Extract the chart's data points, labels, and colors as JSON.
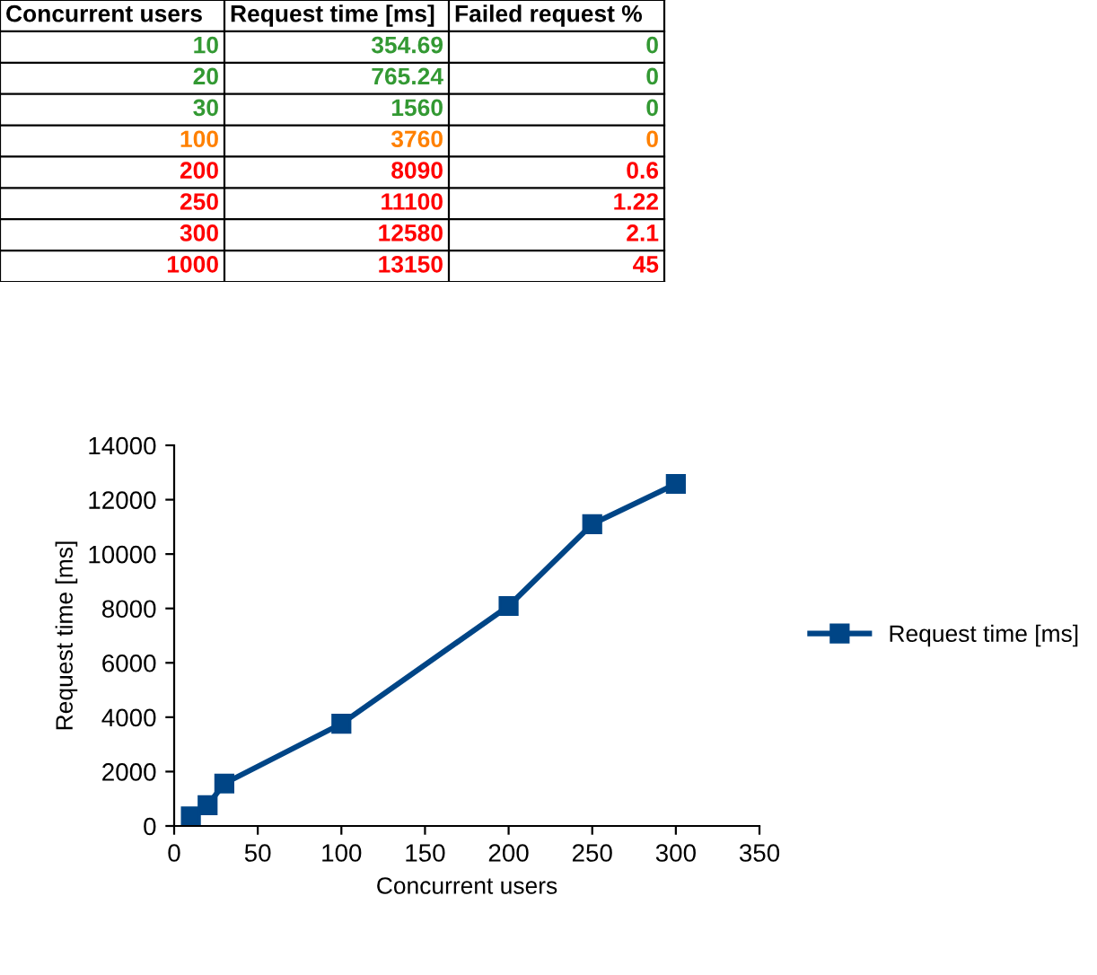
{
  "chart_data": [
    {
      "type": "other",
      "categories": [
        "Concurrent users",
        "Request time [ms]",
        "Failed request %"
      ],
      "annotations": [
        "10",
        "354.69",
        "0",
        "20",
        "765.24",
        "0",
        "30",
        "1560",
        "0",
        "100",
        "3760",
        "0",
        "200",
        "8090",
        "0.6",
        "250",
        "11100",
        "1.22",
        "300",
        "12580",
        "2.1",
        "1000",
        "13150",
        "45"
      ],
      "colors": [
        "#339933",
        "#339933",
        "#339933",
        "#ff8000",
        "#ff0000",
        "#ff0000",
        "#ff0000",
        "#ff0000"
      ]
    },
    {
      "type": "line",
      "xlabel": "Concurrent users",
      "ylabel": "Request time [ms]",
      "x": [
        10,
        20,
        30,
        100,
        200,
        250,
        300
      ],
      "series": [
        {
          "name": "Request time [ms]",
          "color": "#004586",
          "values": [
            354.69,
            765.24,
            1560,
            3760,
            8090,
            11100,
            12580
          ]
        }
      ],
      "xlim": [
        0,
        350
      ],
      "xticks": [
        0,
        50,
        100,
        150,
        200,
        250,
        300,
        350
      ],
      "ylim": [
        0,
        14000
      ],
      "yticks": [
        0,
        2000,
        4000,
        6000,
        8000,
        10000,
        12000,
        14000
      ],
      "marker": "square",
      "line_style": "solid",
      "legend": "right",
      "grid": false
    }
  ]
}
